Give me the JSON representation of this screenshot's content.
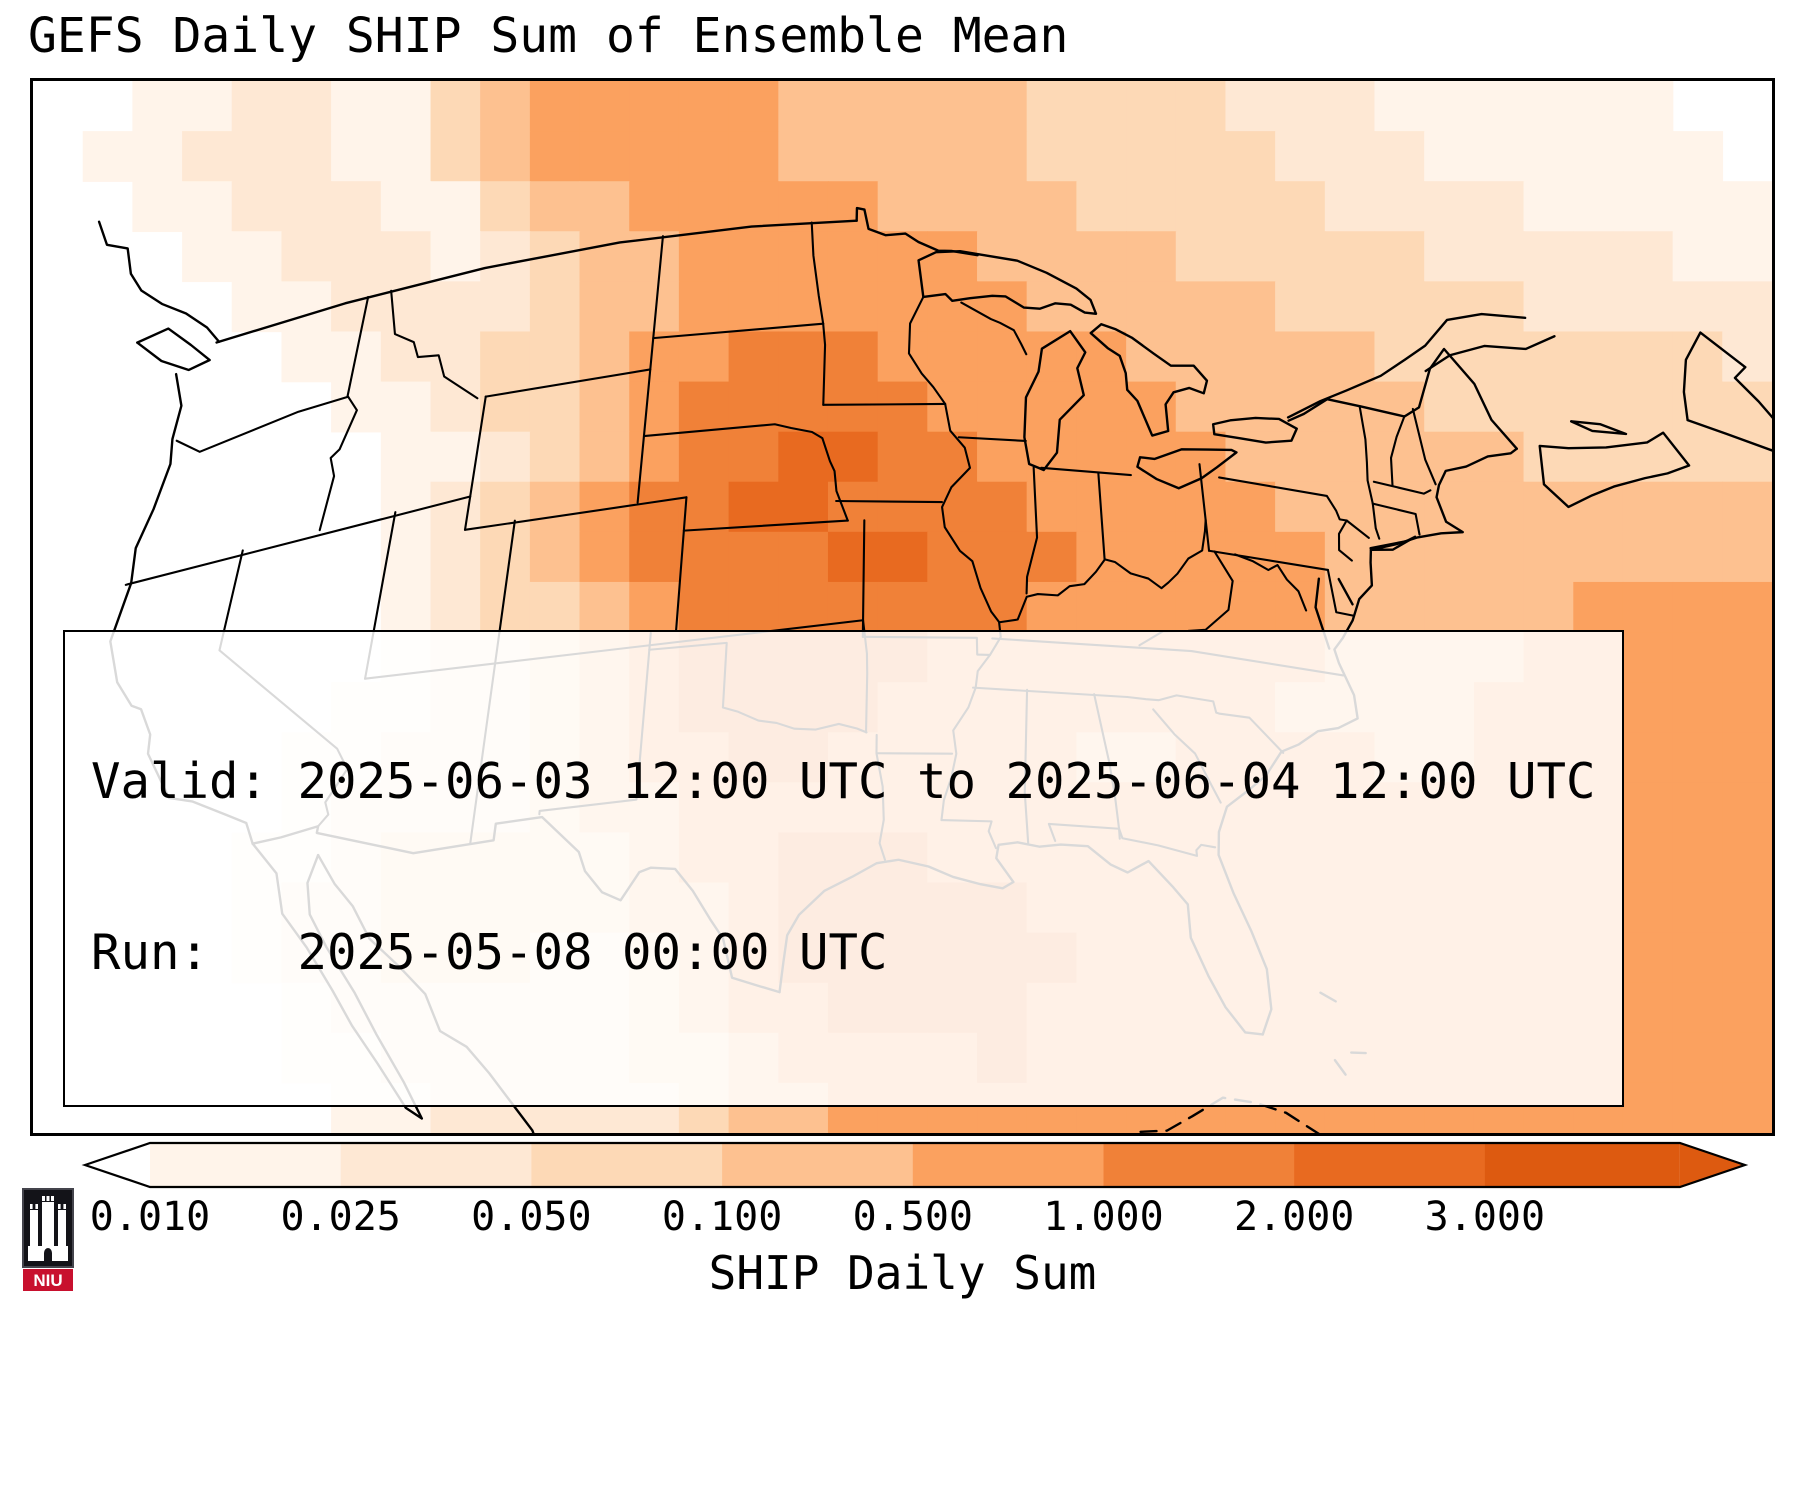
{
  "title": "GEFS Daily SHIP Sum of Ensemble Mean",
  "info_box": {
    "line1": "Valid: 2025-06-03 12:00 UTC to 2025-06-04 12:00 UTC",
    "line2": "Run:   2025-05-08 00:00 UTC"
  },
  "colorbar": {
    "label": "SHIP Daily Sum",
    "ticks": [
      "0.010",
      "0.025",
      "0.050",
      "0.100",
      "0.500",
      "1.000",
      "2.000",
      "3.000"
    ]
  },
  "logo": {
    "text": "NIU",
    "accent": "#c8102e"
  },
  "chart_data": {
    "type": "heatmap",
    "title": "GEFS Daily SHIP Sum of Ensemble Mean",
    "colorbar_label": "SHIP Daily Sum",
    "valid": "2025-06-03 12:00 UTC to 2025-06-04 12:00 UTC",
    "run": "2025-05-08 00:00 UTC",
    "scale_boundaries": [
      0.01,
      0.025,
      0.05,
      0.1,
      0.5,
      1.0,
      2.0,
      3.0
    ],
    "scale_colors": [
      "#ffffff",
      "#fff4ea",
      "#fee8d4",
      "#fdd9b6",
      "#fdc190",
      "#fba15f",
      "#f08138",
      "#e86a20",
      "#dd5a10"
    ],
    "legend": "grid_levels rows of digits 0-8 over the CONUS map domain (west to east, north to south); 0 = SHIP < 0.010 (white), digits 1-7 = successive bins between scale_boundaries, 8 = > 3.000; maximum SHIP daily sums (1-3) over the central Plains (NE/KS/MO/OK) and western Gulf of Mexico; near zero over the western US",
    "grid_levels": [
      "00112211345555544444333322211111100",
      "01122211345555544444333332221111110",
      "00112221134455555444433333222211111",
      "00011222123445555554444333332222211",
      "00001122223445555555444443333322222",
      "00000112233455666555554444433333332",
      "00000011233456666655555444443333333",
      "00000001123456677665555544444433333",
      "00000001234566776666555554444444444",
      "00000001234566667766655555444444444",
      "00000001233456666666555555444445555",
      "00000001223456666655555555444455555",
      "00000011223456666555555554444555555",
      "00000112223455665555544555544555555",
      "00000122223445555555555555555555555",
      "00001123333345566655555555555555555",
      "00001223333344566666555555555555555",
      "00001223332234566666655555555555555",
      "00000122222234556666555555555555555",
      "00000112222233455556555555555555555",
      "00000011222223445555555555555555555"
    ]
  }
}
